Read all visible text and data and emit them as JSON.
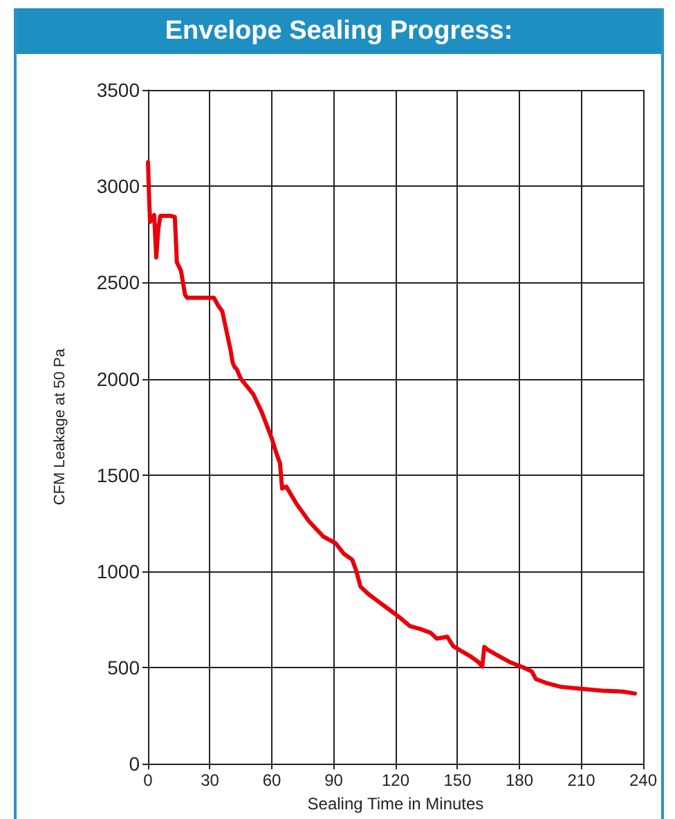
{
  "chart_data": {
    "type": "line",
    "title": "Envelope Sealing Progress:",
    "xlabel": "Sealing Time in Minutes",
    "ylabel": "CFM Leakage at 50 Pa",
    "x": [
      0,
      0.5,
      1,
      2,
      3,
      4,
      5,
      6,
      8,
      11,
      13,
      14,
      16,
      18,
      19,
      25,
      32,
      34,
      36,
      38,
      40,
      41,
      42,
      43,
      45,
      48,
      51,
      55,
      60,
      62,
      64,
      65,
      67,
      72,
      78,
      85,
      91,
      95,
      99,
      101,
      103,
      107,
      112,
      117,
      122,
      127,
      132,
      137,
      140,
      145,
      148,
      152,
      156,
      160,
      162,
      163,
      165,
      170,
      176,
      182,
      186,
      188,
      193,
      200,
      210,
      220,
      230,
      236
    ],
    "series": [
      {
        "color": "#e8000b",
        "values": [
          3125,
          2950,
          2815,
          2830,
          2850,
          2630,
          2780,
          2846,
          2846,
          2846,
          2840,
          2605,
          2560,
          2435,
          2420,
          2420,
          2420,
          2380,
          2350,
          2250,
          2150,
          2085,
          2060,
          2050,
          2000,
          1960,
          1920,
          1830,
          1690,
          1620,
          1560,
          1430,
          1440,
          1350,
          1260,
          1180,
          1145,
          1090,
          1060,
          1000,
          920,
          880,
          840,
          800,
          760,
          715,
          700,
          680,
          650,
          660,
          610,
          585,
          560,
          530,
          505,
          607,
          590,
          560,
          525,
          500,
          480,
          440,
          420,
          400,
          390,
          380,
          375,
          365
        ]
      }
    ],
    "xlim": [
      0,
      240
    ],
    "xticks": [
      0,
      30,
      60,
      90,
      120,
      150,
      180,
      210,
      240
    ],
    "ylim": [
      0,
      3500
    ],
    "yticks": [
      0,
      500,
      1000,
      1500,
      2000,
      2500,
      3000,
      3500
    ],
    "grid": true,
    "marker": "none",
    "line_style": "solid"
  }
}
